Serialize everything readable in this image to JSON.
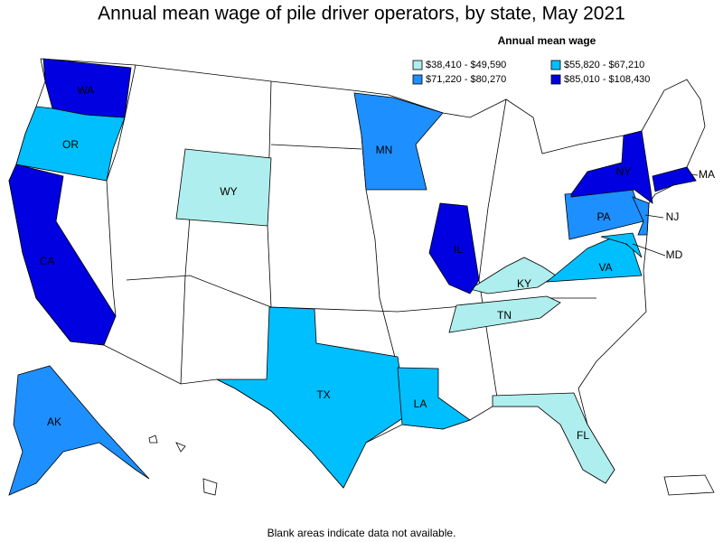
{
  "title": "Annual mean wage of pile driver operators, by state, May 2021",
  "legend": {
    "title": "Annual mean wage",
    "bins": [
      {
        "label": "$38,410 - $49,590",
        "color": "#aeeeee",
        "states": [
          "WY",
          "KY",
          "TN",
          "FL"
        ]
      },
      {
        "label": "$55,820 - $67,210",
        "color": "#00bfff",
        "states": [
          "OR",
          "TX",
          "LA",
          "VA",
          "MD"
        ]
      },
      {
        "label": "$71,220 - $80,270",
        "color": "#1e8fff",
        "states": [
          "MN",
          "PA",
          "NJ",
          "AK"
        ]
      },
      {
        "label": "$85,010 - $108,430",
        "color": "#0000e0",
        "states": [
          "WA",
          "CA",
          "IL",
          "NY",
          "MA"
        ]
      }
    ]
  },
  "footnote": "Blank areas indicate data not available."
}
